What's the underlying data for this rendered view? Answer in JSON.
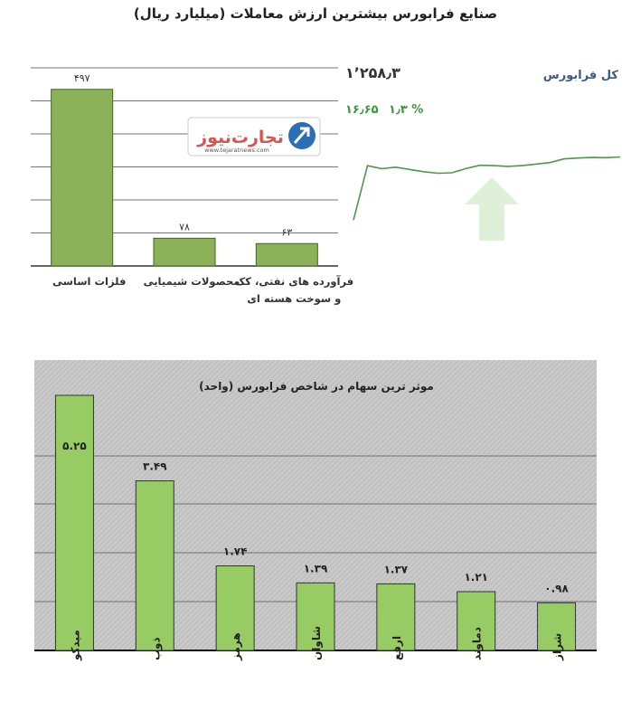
{
  "page_title": "صنایع فرابورس بیشترین ارزش معاملات  (میلیارد ریال)",
  "logo": {
    "text": "تجارت‌نیوز",
    "url": "www.tejaratnews.com",
    "colors": {
      "blue": "#2a6fb6",
      "red": "#d9534f",
      "green": "#6aa84f"
    }
  },
  "index_panel": {
    "name": "کل فرابورس",
    "value": "۱٬۲۵۸٫۳",
    "change": "۱۶٫۶۵",
    "change_pct": "۱٫۳ %",
    "colors": {
      "line": "#4a9a4a",
      "arrow": "#dff0d8",
      "name": "#3a5a8a"
    }
  },
  "chart_data": [
    {
      "type": "bar",
      "title": "صنایع فرابورس بیشترین ارزش معاملات  (میلیارد ریال)",
      "categories": [
        "فلزات اساسی",
        "محصولات شیمیایی",
        "فرآورده های نفتی، کک و سوخت هسته ای"
      ],
      "category_lines": [
        [
          "فلزات اساسی"
        ],
        [
          "محصولات شیمیایی"
        ],
        [
          "فرآورده های نفتی، کک",
          "و سوخت هسته ای"
        ]
      ],
      "values": [
        497,
        78,
        63
      ],
      "value_labels": [
        "۴۹۷",
        "۷۸",
        "۶۳"
      ],
      "ylim": [
        0,
        560
      ],
      "grid": true,
      "colors": {
        "bar": "#8bb259",
        "bar_border": "#44651f"
      }
    },
    {
      "type": "line",
      "title": "کل فرابورس",
      "values": [
        1241.6,
        1256.0,
        1255.2,
        1255.6,
        1255.0,
        1254.4,
        1254.0,
        1254.1,
        1255.2,
        1256.1,
        1256.0,
        1255.8,
        1256.0,
        1256.4,
        1256.8,
        1257.8,
        1258.0,
        1258.2,
        1258.1,
        1258.3
      ],
      "ylim": [
        1240,
        1262
      ],
      "grid": false
    },
    {
      "type": "bar",
      "title": "موثر ترین سهام در شاخص فرابورس (واحد)",
      "categories": [
        "میدکو",
        "ذوب",
        "هرمز",
        "شاوان",
        "ارفع",
        "دماوند",
        "شراز"
      ],
      "values": [
        5.25,
        3.49,
        1.74,
        1.39,
        1.37,
        1.21,
        0.98
      ],
      "value_labels": [
        "۵.۲۵",
        "۳.۴۹",
        "۱.۷۴",
        "۱.۳۹",
        "۱.۳۷",
        "۱.۲۱",
        "۰.۹۸"
      ],
      "ylim": [
        0,
        5.25
      ],
      "grid": true,
      "colors": {
        "bar": "#97cc64",
        "bar_border": "#333333",
        "background": "#c9c9c9"
      }
    }
  ]
}
